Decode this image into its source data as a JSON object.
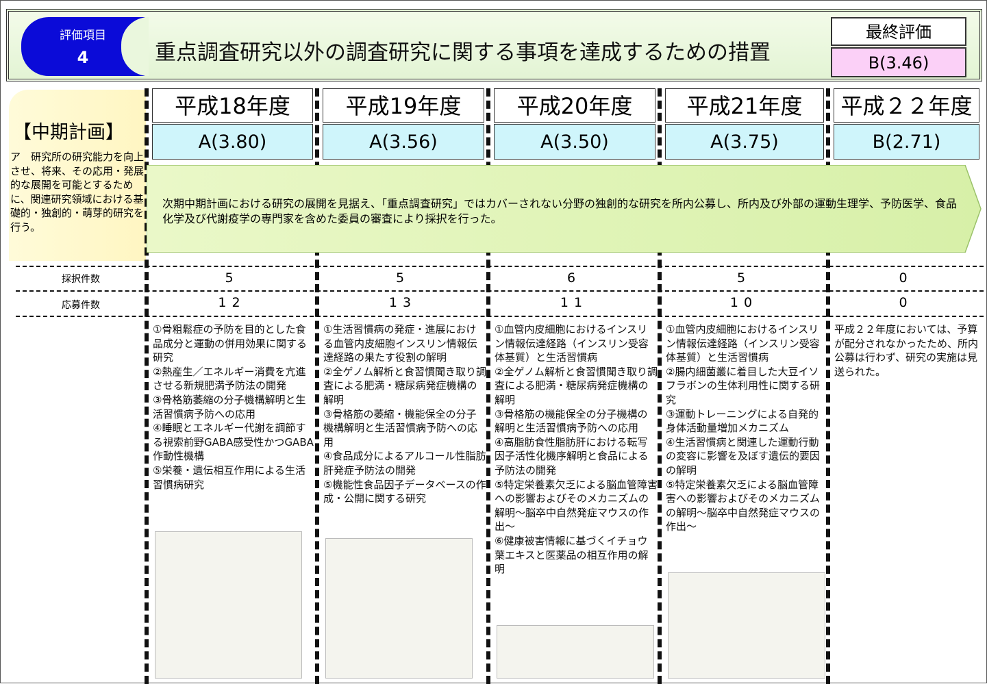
{
  "header": {
    "badge_label": "評価項目",
    "badge_number": "4",
    "title": "重点調査研究以外の調査研究に関する事項を達成するための措置",
    "final_label": "最終評価",
    "final_grade": "B(3.46)"
  },
  "plan": {
    "heading": "【中期計画】",
    "text": "ア　研究所の研究能力を向上させ、将来、その応用・発展的な展開を可能とするために、関連研究領域における基礎的・独創的・萌芽的研究を行う。"
  },
  "banner": "次期中期計画における研究の展開を見据え、「重点調査研究」ではカバーされない分野の独創的な研究を所内公募し、所内及び外部の運動生理学、予防医学、食品化学及び代謝疫学の専門家を含めた委員の審査により採択を行った。",
  "row_labels": {
    "adopted": "採択件数",
    "applied": "応募件数"
  },
  "years": [
    {
      "year": "平成18年度",
      "grade": "A(3.80)",
      "adopted": 5,
      "applied": 12,
      "items": [
        "①骨粗鬆症の予防を目的とした食品成分と運動の併用効果に関する研究",
        "②熱産生／エネルギー消費を亢進させる新規肥満予防法の開発",
        "③骨格筋萎縮の分子機構解明と生活習慣病予防への応用",
        "④睡眠とエネルギー代謝を調節する視索前野GABA感受性かつGABA作動性機構",
        "⑤栄養・遺伝相互作用による生活習慣病研究"
      ]
    },
    {
      "year": "平成19年度",
      "grade": "A(3.56)",
      "adopted": 5,
      "applied": 13,
      "items": [
        "①生活習慣病の発症・進展における血管内皮細胞インスリン情報伝達経路の果たす役割の解明",
        "②全ゲノム解析と食習慣聞き取り調査による肥満・糖尿病発症機構の解明",
        "③骨格筋の萎縮・機能保全の分子機構解明と生活習慣病予防への応用",
        "④食品成分によるアルコール性脂肪肝発症予防法の開発",
        "⑤機能性食品因子データベースの作成・公開に関する研究"
      ]
    },
    {
      "year": "平成20年度",
      "grade": "A(3.50)",
      "adopted": 6,
      "applied": 11,
      "items": [
        "①血管内皮細胞におけるインスリン情報伝達経路（インスリン受容体基質）と生活習慣病",
        "②全ゲノム解析と食習慣聞き取り調査による肥満・糖尿病発症機構の解明",
        "③骨格筋の機能保全の分子機構の解明と生活習慣病予防への応用",
        "④高脂肪食性脂肪肝における転写因子活性化機序解明と食品による予防法の開発",
        "⑤特定栄養素欠乏による脳血管障害への影響およびそのメカニズムの解明～脳卒中自然発症マウスの作出～",
        "⑥健康被害情報に基づくイチョウ葉エキスと医薬品の相互作用の解明"
      ]
    },
    {
      "year": "平成21年度",
      "grade": "A(3.75)",
      "adopted": 5,
      "applied": 10,
      "items": [
        "①血管内皮細胞におけるインスリン情報伝達経路（インスリン受容体基質）と生活習慣病",
        "②腸内細菌叢に着目した大豆イソフラボンの生体利用性に関する研究",
        "③運動トレーニングによる自発的身体活動量増加メカニズム",
        "④生活習慣病と関連した運動行動の変容に影響を及ぼす遺伝的要因の解明",
        "⑤特定栄養素欠乏による脳血管障害への影響およびそのメカニズムの解明～脳卒中自然発症マウスの作出～"
      ]
    },
    {
      "year": "平成２２年度",
      "grade": "B(2.71)",
      "adopted": 0,
      "applied": 0,
      "items": [
        "平成２２年度においては、予算が配分されなかったため、所内公募は行わず、研究の実施は見送られた。"
      ]
    }
  ]
}
